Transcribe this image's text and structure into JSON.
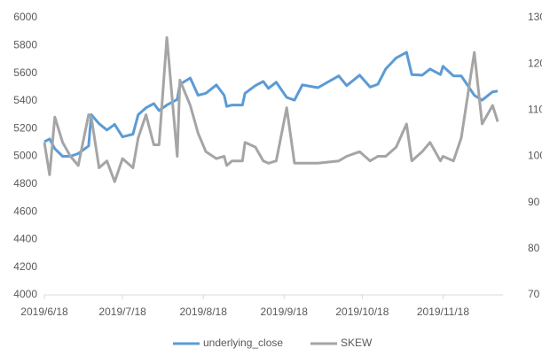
{
  "chart_data": {
    "type": "line",
    "x": [
      "2019/6/18",
      "2019/6/20",
      "2019/6/22",
      "2019/6/25",
      "2019/6/28",
      "2019/7/1",
      "2019/7/5",
      "2019/7/6",
      "2019/7/9",
      "2019/7/12",
      "2019/7/15",
      "2019/7/18",
      "2019/7/22",
      "2019/7/24",
      "2019/7/27",
      "2019/7/30",
      "2019/8/1",
      "2019/8/4",
      "2019/8/8",
      "2019/8/9",
      "2019/8/13",
      "2019/8/16",
      "2019/8/19",
      "2019/8/23",
      "2019/8/26",
      "2019/8/27",
      "2019/8/29",
      "2019/9/2",
      "2019/9/3",
      "2019/9/7",
      "2019/9/10",
      "2019/9/12",
      "2019/9/15",
      "2019/9/19",
      "2019/9/22",
      "2019/9/25",
      "2019/10/1",
      "2019/10/9",
      "2019/10/12",
      "2019/10/17",
      "2019/10/21",
      "2019/10/24",
      "2019/10/27",
      "2019/10/31",
      "2019/11/4",
      "2019/11/6",
      "2019/11/10",
      "2019/11/13",
      "2019/11/17",
      "2019/11/18",
      "2019/11/22",
      "2019/11/25",
      "2019/11/30",
      "2019/12/3",
      "2019/12/7",
      "2019/12/9"
    ],
    "series": [
      {
        "name": "underlying_close",
        "color": "#5b9bd5",
        "axis": "y",
        "values": [
          5105,
          5125,
          5055,
          5000,
          5000,
          5020,
          5075,
          5300,
          5235,
          5190,
          5230,
          5140,
          5160,
          5300,
          5350,
          5380,
          5330,
          5370,
          5410,
          5520,
          5565,
          5440,
          5455,
          5515,
          5440,
          5360,
          5370,
          5370,
          5455,
          5510,
          5540,
          5490,
          5535,
          5425,
          5405,
          5515,
          5495,
          5580,
          5510,
          5585,
          5500,
          5520,
          5630,
          5710,
          5750,
          5590,
          5585,
          5630,
          5590,
          5650,
          5580,
          5580,
          5440,
          5405,
          5465,
          5470
        ]
      },
      {
        "name": "SKEW",
        "color": "#a5a5a5",
        "axis": "y2",
        "values": [
          103,
          96,
          108.5,
          103,
          100,
          98,
          109,
          108.5,
          97.5,
          99,
          94.5,
          99.5,
          97.5,
          104,
          109,
          102.5,
          102.5,
          125.7,
          100,
          116.5,
          111,
          105,
          101,
          99.5,
          100,
          98,
          99,
          99,
          103,
          102,
          99,
          98.5,
          99,
          110.5,
          98.5,
          98.5,
          98.5,
          99,
          100,
          101,
          99,
          100,
          100,
          102,
          107,
          99,
          101,
          103,
          99,
          100,
          99,
          104,
          122.5,
          107,
          111,
          107.5
        ]
      }
    ],
    "xlim": [
      "2019/6/18",
      "2019/12/11"
    ],
    "xticks": [
      "2019/6/18",
      "2019/7/18",
      "2019/8/18",
      "2019/9/18",
      "2019/10/18",
      "2019/11/18"
    ],
    "ylim": [
      4000,
      6000
    ],
    "yticks": [
      4000,
      4200,
      4400,
      4600,
      4800,
      5000,
      5200,
      5400,
      5600,
      5800,
      6000
    ],
    "y2lim": [
      70,
      130
    ],
    "y2ticks": [
      70,
      80,
      90,
      100,
      110,
      120,
      130
    ],
    "legend": "bottom"
  }
}
